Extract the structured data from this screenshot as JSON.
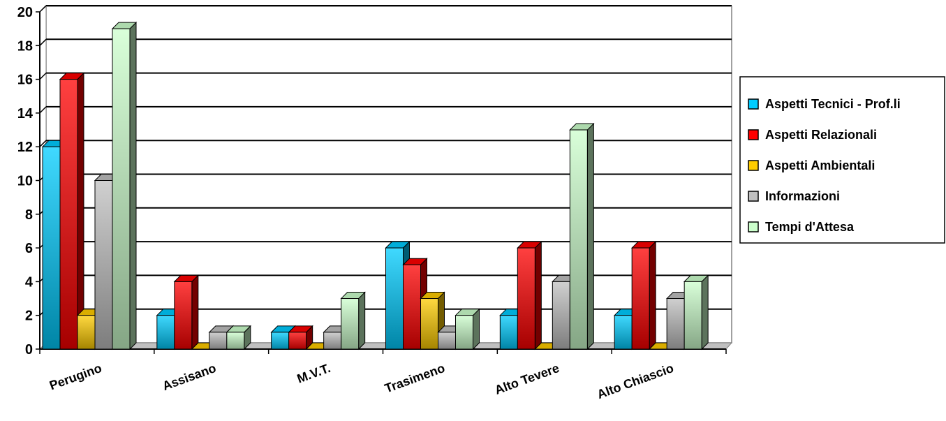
{
  "chart_data": {
    "type": "bar",
    "style": "3d-clustered-column",
    "categories": [
      "Perugino",
      "Assisano",
      "M.V.T.",
      "Trasimeno",
      "Alto Tevere",
      "Alto Chiascio"
    ],
    "series": [
      {
        "name": "Aspetti Tecnici - Prof.li",
        "color": "#00ccff",
        "values": [
          12,
          2,
          1,
          6,
          2,
          2
        ]
      },
      {
        "name": "Aspetti Relazionali",
        "color": "#ff0000",
        "values": [
          16,
          4,
          1,
          5,
          6,
          6
        ]
      },
      {
        "name": "Aspetti Ambientali",
        "color": "#ffcc00",
        "values": [
          2,
          0,
          0,
          3,
          0,
          0
        ]
      },
      {
        "name": "Informazioni",
        "color": "#c0c0c0",
        "values": [
          10,
          1,
          1,
          1,
          4,
          3
        ]
      },
      {
        "name": "Tempi d'Attesa",
        "color": "#ccffcc",
        "values": [
          19,
          1,
          3,
          2,
          13,
          4
        ]
      }
    ],
    "ylim": [
      0,
      20
    ],
    "yticks": [
      "0",
      "2",
      "4",
      "6",
      "8",
      "10",
      "12",
      "14",
      "16",
      "18",
      "20"
    ],
    "grid": true,
    "legend": "right"
  }
}
